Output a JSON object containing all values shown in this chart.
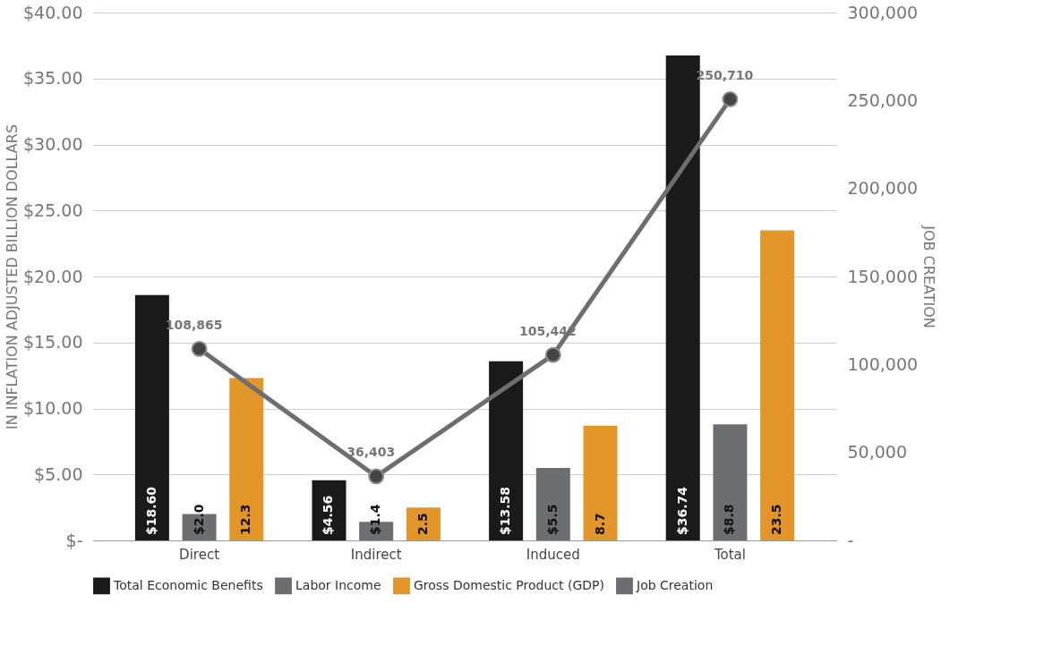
{
  "chart_data": {
    "type": "bar",
    "categories": [
      "Direct",
      "Indirect",
      "Induced",
      "Total"
    ],
    "ylabel": "IN INFLATION ADJUSTED BILLION DOLLARS",
    "y2label": "JOB CREATION",
    "ylim": [
      0,
      40
    ],
    "yticks": [
      {
        "value": 0,
        "label": "$-"
      },
      {
        "value": 5,
        "label": "$5.00"
      },
      {
        "value": 10,
        "label": "$10.00"
      },
      {
        "value": 15,
        "label": "$15.00"
      },
      {
        "value": 20,
        "label": "$20.00"
      },
      {
        "value": 25,
        "label": "$25.00"
      },
      {
        "value": 30,
        "label": "$30.00"
      },
      {
        "value": 35,
        "label": "$35.00"
      },
      {
        "value": 40,
        "label": "$40.00"
      }
    ],
    "y2lim": [
      0,
      300000
    ],
    "y2ticks": [
      {
        "value": 0,
        "label": "-"
      },
      {
        "value": 50000,
        "label": "50,000"
      },
      {
        "value": 100000,
        "label": "100,000"
      },
      {
        "value": 150000,
        "label": "150,000"
      },
      {
        "value": 200000,
        "label": "200,000"
      },
      {
        "value": 250000,
        "label": "250,000"
      },
      {
        "value": 300000,
        "label": "300,000"
      }
    ],
    "grid": "y",
    "legend": "bottom",
    "series": [
      {
        "name": "Total Economic Benefits",
        "color": "#1a1a1a",
        "values": [
          18.6,
          4.56,
          13.58,
          36.74
        ],
        "value_labels": [
          "$18.60",
          "$4.56",
          "$13.58",
          "$36.74"
        ]
      },
      {
        "name": "Labor Income",
        "color": "#6d6e71",
        "values": [
          2.0,
          1.4,
          5.5,
          8.8
        ],
        "value_labels": [
          "$2.0",
          "$1.4",
          "$5.5",
          "$8.8"
        ]
      },
      {
        "name": "Gross Domestic Product (GDP)",
        "color": "#e2962a",
        "values": [
          12.3,
          2.5,
          8.7,
          23.5
        ],
        "value_labels": [
          "12.3",
          "2.5",
          "8.7",
          "23.5"
        ]
      },
      {
        "name": "Job Creation",
        "type": "line",
        "axis": "y2",
        "color": "#6d6e71",
        "marker": "circle",
        "values": [
          108865,
          36403,
          105442,
          250710
        ],
        "value_labels": [
          "108,865",
          "36,403",
          "105,442",
          "250,710"
        ]
      }
    ]
  }
}
